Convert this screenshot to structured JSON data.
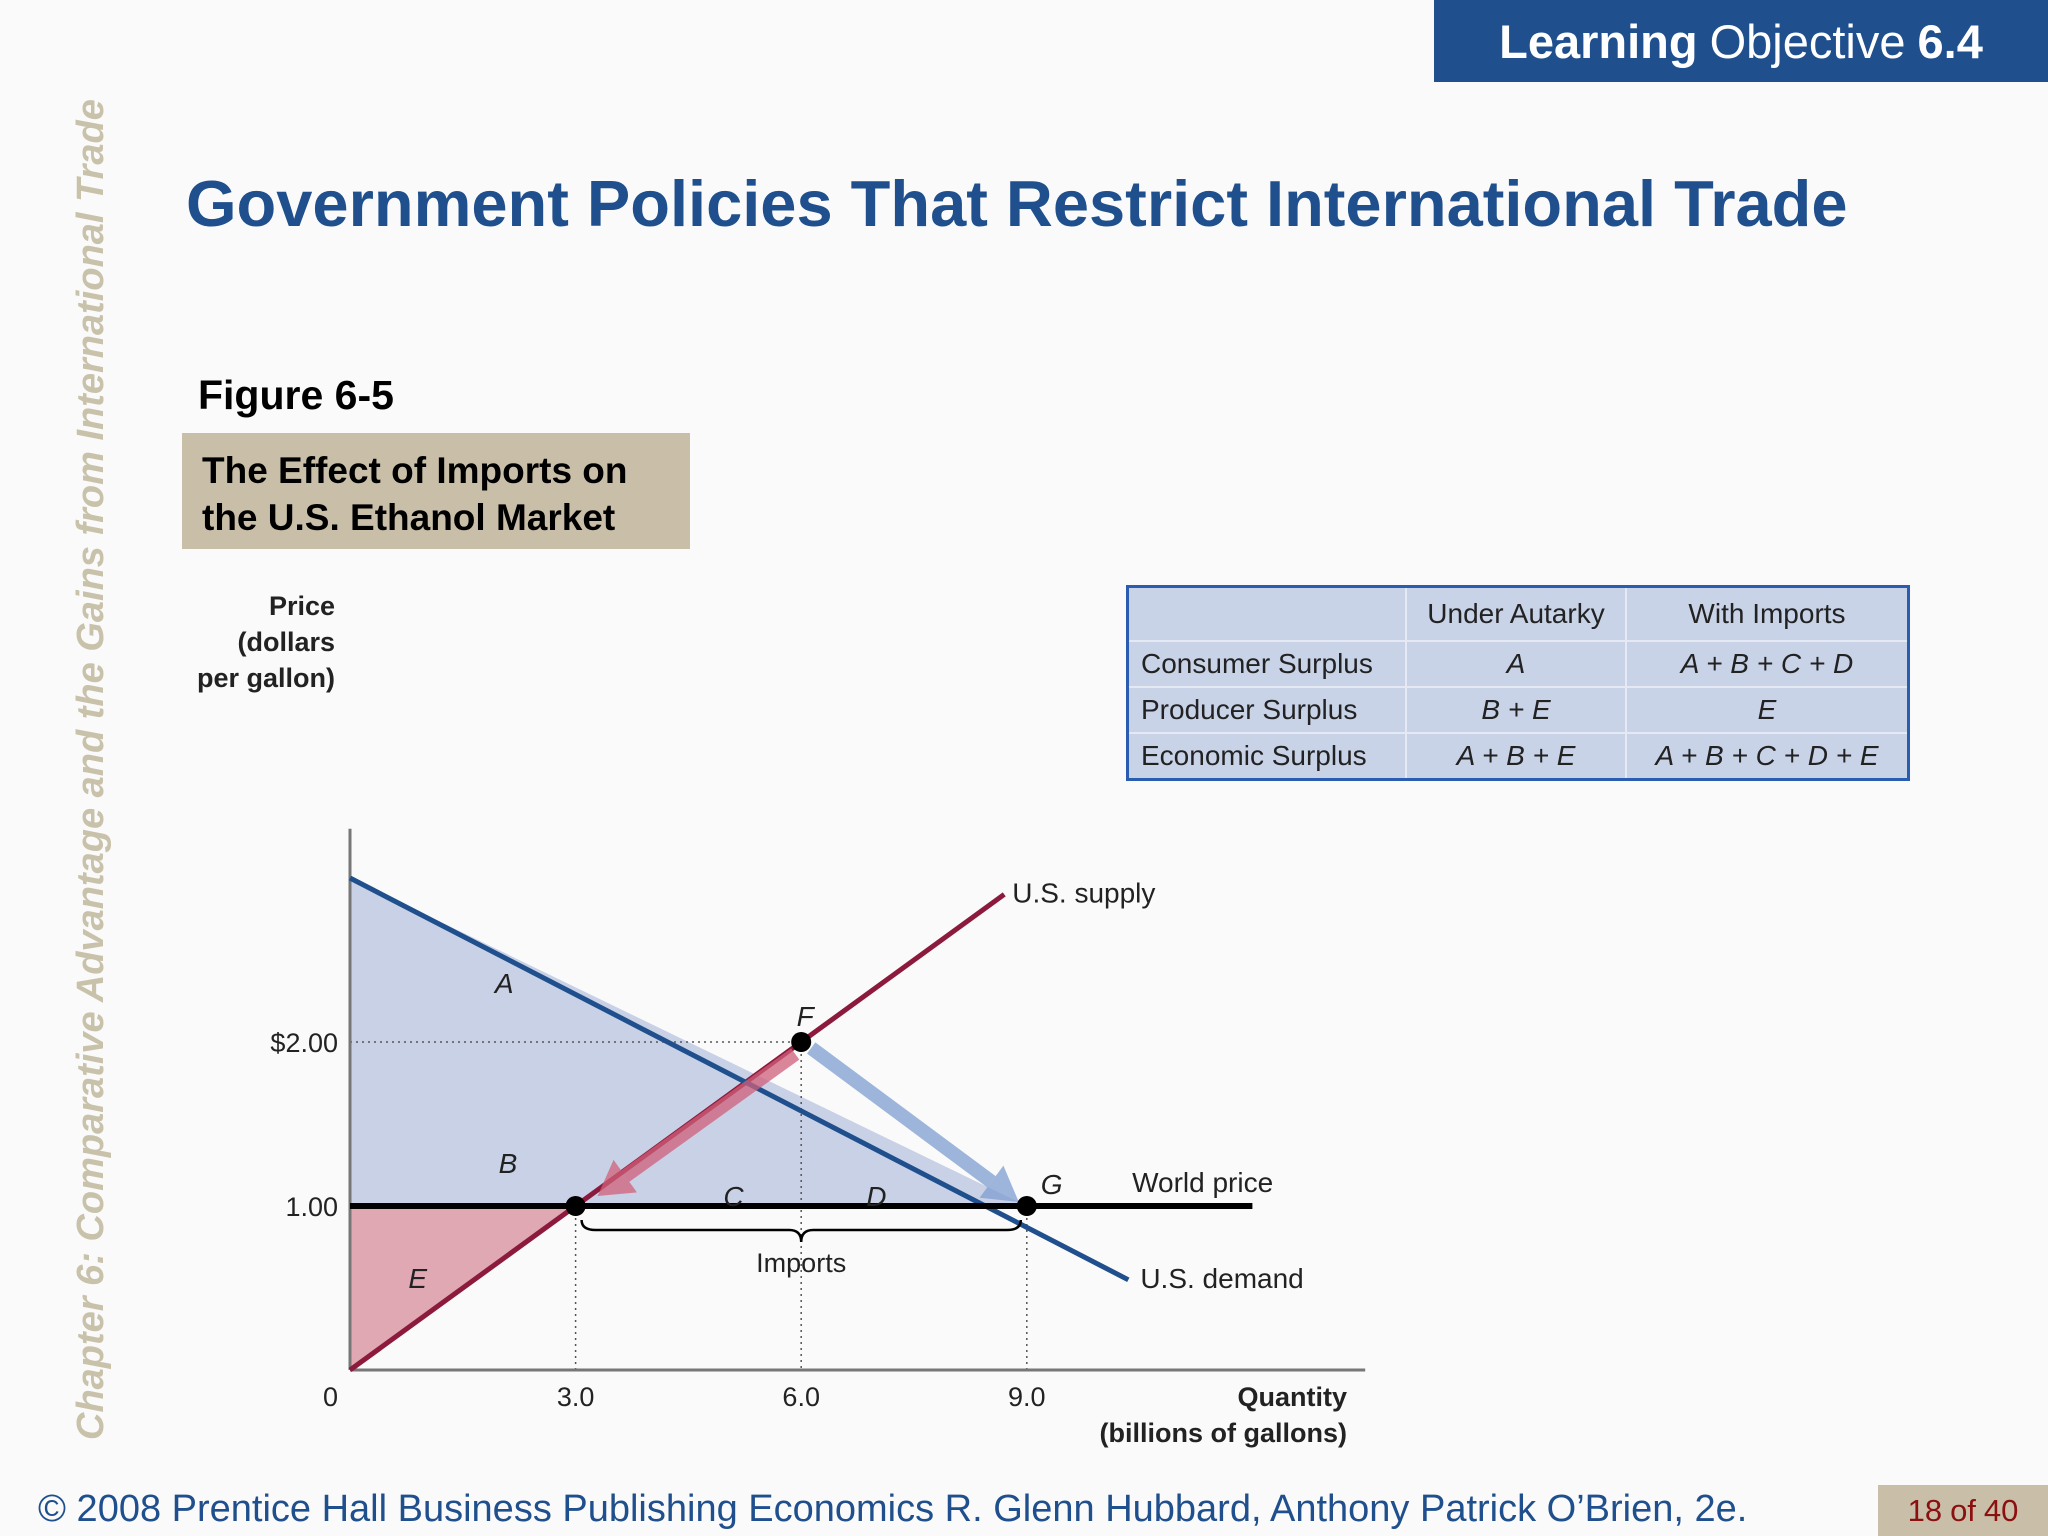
{
  "side_text": "Chapter 6:  Comparative Advantage and the Gains from International Trade",
  "header": {
    "lo_bold": "Learning",
    "lo_word": "Objective",
    "lo_number": "6.4"
  },
  "slide_title": "Government Policies That Restrict International Trade",
  "figure": {
    "number": "Figure 6-5",
    "caption_line1": "The Effect of Imports on",
    "caption_line2": "the U.S. Ethanol Market"
  },
  "table": {
    "headers": [
      "",
      "Under Autarky",
      "With Imports"
    ],
    "rows": [
      [
        "Consumer Surplus",
        "A",
        "A + B + C + D"
      ],
      [
        "Producer Surplus",
        "B + E",
        "E"
      ],
      [
        "Economic Surplus",
        "A + B + E",
        "A + B + C + D + E"
      ]
    ]
  },
  "chart_data": {
    "type": "line",
    "ylabel_lines": [
      "Price",
      "(dollars",
      "per gallon)"
    ],
    "xlabel_lines": [
      "Quantity",
      "(billions of gallons)"
    ],
    "origin_label": "0",
    "x_ticks": [
      {
        "value": 3,
        "label": "3.0"
      },
      {
        "value": 6,
        "label": "6.0"
      },
      {
        "value": 9,
        "label": "9.0"
      }
    ],
    "y_ticks": [
      {
        "value": 1,
        "label": "1.00"
      },
      {
        "value": 2,
        "label": "$2.00"
      }
    ],
    "xlim": [
      0,
      13.5
    ],
    "ylim": [
      0,
      3.3
    ],
    "series": [
      {
        "name": "U.S. supply",
        "color": "#8c1a3c",
        "points": [
          [
            0,
            0
          ],
          [
            8.7,
            2.9
          ]
        ]
      },
      {
        "name": "U.S. demand",
        "color": "#1f4f8c",
        "points": [
          [
            0,
            3.0
          ],
          [
            10.35,
            0.55
          ]
        ]
      },
      {
        "name": "World price",
        "color": "#000000",
        "points": [
          [
            0,
            1
          ],
          [
            12,
            1
          ]
        ]
      }
    ],
    "points": [
      {
        "name": "F",
        "x": 6,
        "y": 2
      },
      {
        "name": "G",
        "x": 9,
        "y": 1
      },
      {
        "name": "",
        "x": 3,
        "y": 1
      }
    ],
    "areas": [
      "A",
      "B",
      "C",
      "D",
      "E"
    ],
    "annotations": [
      "Imports"
    ],
    "grid": false
  },
  "footer": {
    "text": "© 2008 Prentice Hall Business Publishing   Economics  R. Glenn Hubbard, Anthony Patrick O’Brien, 2e.",
    "page_current": "18",
    "page_of": "of",
    "page_total": "40"
  },
  "colors": {
    "title_blue": "#1f4f8c",
    "tan": "#c9bfa8",
    "surplus_fill": "#c8d1e6",
    "producer_fill": "#e0a8b2"
  }
}
